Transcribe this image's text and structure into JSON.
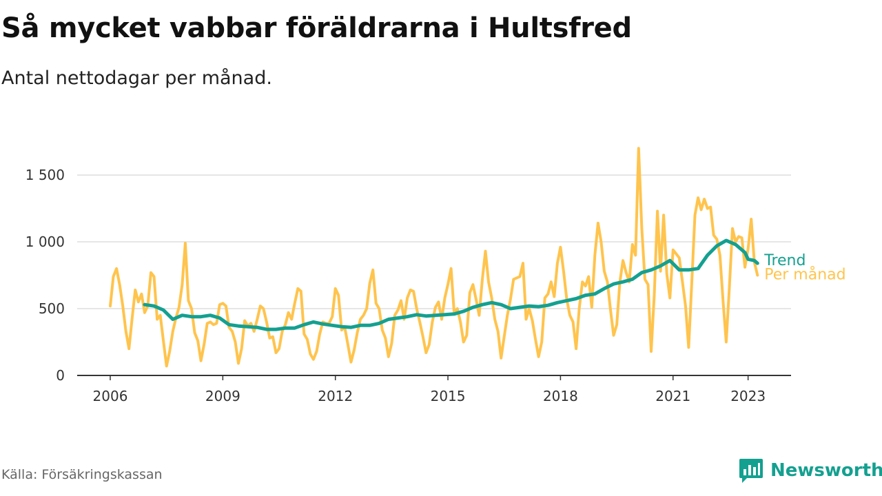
{
  "header": {
    "title": "Så mycket vabbar föräldrarna i Hultsfred",
    "subtitle": "Antal nettodagar per månad."
  },
  "footer": {
    "source": "Källa: Försäkringskassan",
    "brand": "Newsworthy",
    "brand_icon": "bar-chart-speech-bubble-icon"
  },
  "colors": {
    "monthly": "#ffc44d",
    "trend": "#14a090",
    "grid": "#dddddd",
    "axis": "#333333"
  },
  "chart_data": {
    "type": "line",
    "title": "Så mycket vabbar föräldrarna i Hultsfred",
    "subtitle": "Antal nettodagar per månad.",
    "xlabel": "",
    "ylabel": "",
    "x_ticks": [
      "2006",
      "2009",
      "2012",
      "2015",
      "2018",
      "2021",
      "2023"
    ],
    "y_ticks": [
      0,
      500,
      1000,
      1500
    ],
    "y_tick_labels": [
      "0",
      "500",
      "1 000",
      "1 500"
    ],
    "xlim": [
      "2006-01",
      "2024-12"
    ],
    "ylim": [
      0,
      1650
    ],
    "grid": "horizontal",
    "legend": "inline labels at line ends",
    "series": [
      {
        "name": "Per månad",
        "color": "#ffc44d",
        "points": [
          [
            "2006-01",
            520
          ],
          [
            "2006-02",
            740
          ],
          [
            "2006-03",
            800
          ],
          [
            "2006-04",
            680
          ],
          [
            "2006-05",
            520
          ],
          [
            "2006-06",
            330
          ],
          [
            "2006-07",
            200
          ],
          [
            "2006-08",
            430
          ],
          [
            "2006-09",
            640
          ],
          [
            "2006-10",
            550
          ],
          [
            "2006-11",
            610
          ],
          [
            "2006-12",
            470
          ],
          [
            "2007-01",
            520
          ],
          [
            "2007-02",
            770
          ],
          [
            "2007-03",
            740
          ],
          [
            "2007-04",
            420
          ],
          [
            "2007-05",
            450
          ],
          [
            "2007-06",
            260
          ],
          [
            "2007-07",
            70
          ],
          [
            "2007-08",
            180
          ],
          [
            "2007-09",
            330
          ],
          [
            "2007-10",
            430
          ],
          [
            "2007-11",
            510
          ],
          [
            "2007-12",
            680
          ],
          [
            "2008-01",
            990
          ],
          [
            "2008-02",
            560
          ],
          [
            "2008-03",
            500
          ],
          [
            "2008-04",
            320
          ],
          [
            "2008-05",
            260
          ],
          [
            "2008-06",
            110
          ],
          [
            "2008-07",
            230
          ],
          [
            "2008-08",
            390
          ],
          [
            "2008-09",
            400
          ],
          [
            "2008-10",
            380
          ],
          [
            "2008-11",
            390
          ],
          [
            "2008-12",
            530
          ],
          [
            "2009-01",
            540
          ],
          [
            "2009-02",
            520
          ],
          [
            "2009-03",
            360
          ],
          [
            "2009-04",
            330
          ],
          [
            "2009-05",
            250
          ],
          [
            "2009-06",
            90
          ],
          [
            "2009-07",
            200
          ],
          [
            "2009-08",
            410
          ],
          [
            "2009-09",
            370
          ],
          [
            "2009-10",
            390
          ],
          [
            "2009-11",
            330
          ],
          [
            "2009-12",
            420
          ],
          [
            "2010-01",
            520
          ],
          [
            "2010-02",
            500
          ],
          [
            "2010-03",
            400
          ],
          [
            "2010-04",
            280
          ],
          [
            "2010-05",
            290
          ],
          [
            "2010-06",
            170
          ],
          [
            "2010-07",
            200
          ],
          [
            "2010-08",
            330
          ],
          [
            "2010-09",
            380
          ],
          [
            "2010-10",
            470
          ],
          [
            "2010-11",
            420
          ],
          [
            "2010-12",
            540
          ],
          [
            "2011-01",
            650
          ],
          [
            "2011-02",
            630
          ],
          [
            "2011-03",
            310
          ],
          [
            "2011-04",
            270
          ],
          [
            "2011-05",
            160
          ],
          [
            "2011-06",
            120
          ],
          [
            "2011-07",
            180
          ],
          [
            "2011-08",
            310
          ],
          [
            "2011-09",
            400
          ],
          [
            "2011-10",
            390
          ],
          [
            "2011-11",
            390
          ],
          [
            "2011-12",
            440
          ],
          [
            "2012-01",
            650
          ],
          [
            "2012-02",
            600
          ],
          [
            "2012-03",
            340
          ],
          [
            "2012-04",
            360
          ],
          [
            "2012-05",
            230
          ],
          [
            "2012-06",
            100
          ],
          [
            "2012-07",
            190
          ],
          [
            "2012-08",
            320
          ],
          [
            "2012-09",
            420
          ],
          [
            "2012-10",
            450
          ],
          [
            "2012-11",
            500
          ],
          [
            "2012-12",
            690
          ],
          [
            "2013-01",
            790
          ],
          [
            "2013-02",
            540
          ],
          [
            "2013-03",
            500
          ],
          [
            "2013-04",
            340
          ],
          [
            "2013-05",
            280
          ],
          [
            "2013-06",
            140
          ],
          [
            "2013-07",
            240
          ],
          [
            "2013-08",
            450
          ],
          [
            "2013-09",
            490
          ],
          [
            "2013-10",
            560
          ],
          [
            "2013-11",
            420
          ],
          [
            "2013-12",
            580
          ],
          [
            "2014-01",
            640
          ],
          [
            "2014-02",
            630
          ],
          [
            "2014-03",
            500
          ],
          [
            "2014-04",
            400
          ],
          [
            "2014-05",
            290
          ],
          [
            "2014-06",
            170
          ],
          [
            "2014-07",
            230
          ],
          [
            "2014-08",
            400
          ],
          [
            "2014-09",
            510
          ],
          [
            "2014-10",
            550
          ],
          [
            "2014-11",
            420
          ],
          [
            "2014-12",
            580
          ],
          [
            "2015-01",
            680
          ],
          [
            "2015-02",
            800
          ],
          [
            "2015-03",
            470
          ],
          [
            "2015-04",
            500
          ],
          [
            "2015-05",
            400
          ],
          [
            "2015-06",
            250
          ],
          [
            "2015-07",
            300
          ],
          [
            "2015-08",
            620
          ],
          [
            "2015-09",
            680
          ],
          [
            "2015-10",
            570
          ],
          [
            "2015-11",
            450
          ],
          [
            "2015-12",
            720
          ],
          [
            "2016-01",
            930
          ],
          [
            "2016-02",
            700
          ],
          [
            "2016-03",
            580
          ],
          [
            "2016-04",
            420
          ],
          [
            "2016-05",
            330
          ],
          [
            "2016-06",
            130
          ],
          [
            "2016-07",
            290
          ],
          [
            "2016-08",
            450
          ],
          [
            "2016-09",
            570
          ],
          [
            "2016-10",
            720
          ],
          [
            "2016-11",
            730
          ],
          [
            "2016-12",
            740
          ],
          [
            "2017-01",
            840
          ],
          [
            "2017-02",
            420
          ],
          [
            "2017-03",
            500
          ],
          [
            "2017-04",
            410
          ],
          [
            "2017-05",
            270
          ],
          [
            "2017-06",
            140
          ],
          [
            "2017-07",
            250
          ],
          [
            "2017-08",
            580
          ],
          [
            "2017-09",
            610
          ],
          [
            "2017-10",
            700
          ],
          [
            "2017-11",
            590
          ],
          [
            "2017-12",
            840
          ],
          [
            "2018-01",
            960
          ],
          [
            "2018-02",
            780
          ],
          [
            "2018-03",
            570
          ],
          [
            "2018-04",
            450
          ],
          [
            "2018-05",
            400
          ],
          [
            "2018-06",
            200
          ],
          [
            "2018-07",
            500
          ],
          [
            "2018-08",
            700
          ],
          [
            "2018-09",
            670
          ],
          [
            "2018-10",
            740
          ],
          [
            "2018-11",
            510
          ],
          [
            "2018-12",
            900
          ],
          [
            "2019-01",
            1140
          ],
          [
            "2019-02",
            1000
          ],
          [
            "2019-03",
            780
          ],
          [
            "2019-04",
            700
          ],
          [
            "2019-05",
            490
          ],
          [
            "2019-06",
            300
          ],
          [
            "2019-07",
            380
          ],
          [
            "2019-08",
            700
          ],
          [
            "2019-09",
            860
          ],
          [
            "2019-10",
            770
          ],
          [
            "2019-11",
            700
          ],
          [
            "2019-12",
            980
          ],
          [
            "2020-01",
            900
          ],
          [
            "2020-02",
            1700
          ],
          [
            "2020-03",
            1100
          ],
          [
            "2020-04",
            720
          ],
          [
            "2020-05",
            680
          ],
          [
            "2020-06",
            180
          ],
          [
            "2020-07",
            600
          ],
          [
            "2020-08",
            1230
          ],
          [
            "2020-09",
            780
          ],
          [
            "2020-10",
            1200
          ],
          [
            "2020-11",
            760
          ],
          [
            "2020-12",
            580
          ],
          [
            "2021-01",
            940
          ],
          [
            "2021-02",
            910
          ],
          [
            "2021-03",
            880
          ],
          [
            "2021-04",
            700
          ],
          [
            "2021-05",
            520
          ],
          [
            "2021-06",
            210
          ],
          [
            "2021-07",
            700
          ],
          [
            "2021-08",
            1200
          ],
          [
            "2021-09",
            1330
          ],
          [
            "2021-10",
            1240
          ],
          [
            "2021-11",
            1320
          ],
          [
            "2021-12",
            1250
          ],
          [
            "2022-01",
            1260
          ],
          [
            "2022-02",
            1050
          ],
          [
            "2022-03",
            1020
          ],
          [
            "2022-04",
            900
          ],
          [
            "2022-05",
            560
          ],
          [
            "2022-06",
            250
          ],
          [
            "2022-07",
            650
          ],
          [
            "2022-08",
            1100
          ],
          [
            "2022-09",
            1000
          ],
          [
            "2022-10",
            1040
          ],
          [
            "2022-11",
            1030
          ],
          [
            "2022-12",
            810
          ],
          [
            "2023-01",
            950
          ],
          [
            "2023-02",
            1170
          ],
          [
            "2023-03",
            850
          ],
          [
            "2023-04",
            750
          ]
        ]
      },
      {
        "name": "Trend",
        "color": "#14a090",
        "points": [
          [
            "2006-12",
            530
          ],
          [
            "2007-03",
            520
          ],
          [
            "2007-06",
            490
          ],
          [
            "2007-09",
            420
          ],
          [
            "2007-12",
            450
          ],
          [
            "2008-03",
            440
          ],
          [
            "2008-06",
            440
          ],
          [
            "2008-09",
            450
          ],
          [
            "2008-12",
            430
          ],
          [
            "2009-03",
            380
          ],
          [
            "2009-06",
            370
          ],
          [
            "2009-09",
            365
          ],
          [
            "2009-12",
            360
          ],
          [
            "2010-03",
            345
          ],
          [
            "2010-06",
            345
          ],
          [
            "2010-09",
            355
          ],
          [
            "2010-12",
            355
          ],
          [
            "2011-03",
            380
          ],
          [
            "2011-06",
            400
          ],
          [
            "2011-09",
            385
          ],
          [
            "2011-12",
            375
          ],
          [
            "2012-03",
            365
          ],
          [
            "2012-06",
            360
          ],
          [
            "2012-09",
            375
          ],
          [
            "2012-12",
            375
          ],
          [
            "2013-03",
            390
          ],
          [
            "2013-06",
            420
          ],
          [
            "2013-09",
            430
          ],
          [
            "2013-12",
            440
          ],
          [
            "2014-03",
            455
          ],
          [
            "2014-06",
            445
          ],
          [
            "2014-09",
            450
          ],
          [
            "2014-12",
            455
          ],
          [
            "2015-03",
            460
          ],
          [
            "2015-06",
            480
          ],
          [
            "2015-09",
            510
          ],
          [
            "2015-12",
            530
          ],
          [
            "2016-03",
            545
          ],
          [
            "2016-06",
            530
          ],
          [
            "2016-09",
            500
          ],
          [
            "2016-12",
            510
          ],
          [
            "2017-03",
            520
          ],
          [
            "2017-06",
            515
          ],
          [
            "2017-09",
            525
          ],
          [
            "2017-12",
            545
          ],
          [
            "2018-03",
            560
          ],
          [
            "2018-06",
            575
          ],
          [
            "2018-09",
            600
          ],
          [
            "2018-12",
            610
          ],
          [
            "2019-03",
            650
          ],
          [
            "2019-06",
            685
          ],
          [
            "2019-09",
            700
          ],
          [
            "2019-12",
            720
          ],
          [
            "2020-03",
            770
          ],
          [
            "2020-06",
            790
          ],
          [
            "2020-09",
            820
          ],
          [
            "2020-12",
            860
          ],
          [
            "2021-03",
            790
          ],
          [
            "2021-06",
            790
          ],
          [
            "2021-09",
            800
          ],
          [
            "2021-12",
            900
          ],
          [
            "2022-03",
            970
          ],
          [
            "2022-06",
            1010
          ],
          [
            "2022-09",
            980
          ],
          [
            "2022-12",
            920
          ],
          [
            "2023-01",
            870
          ],
          [
            "2023-03",
            860
          ],
          [
            "2023-04",
            840
          ]
        ]
      }
    ]
  }
}
